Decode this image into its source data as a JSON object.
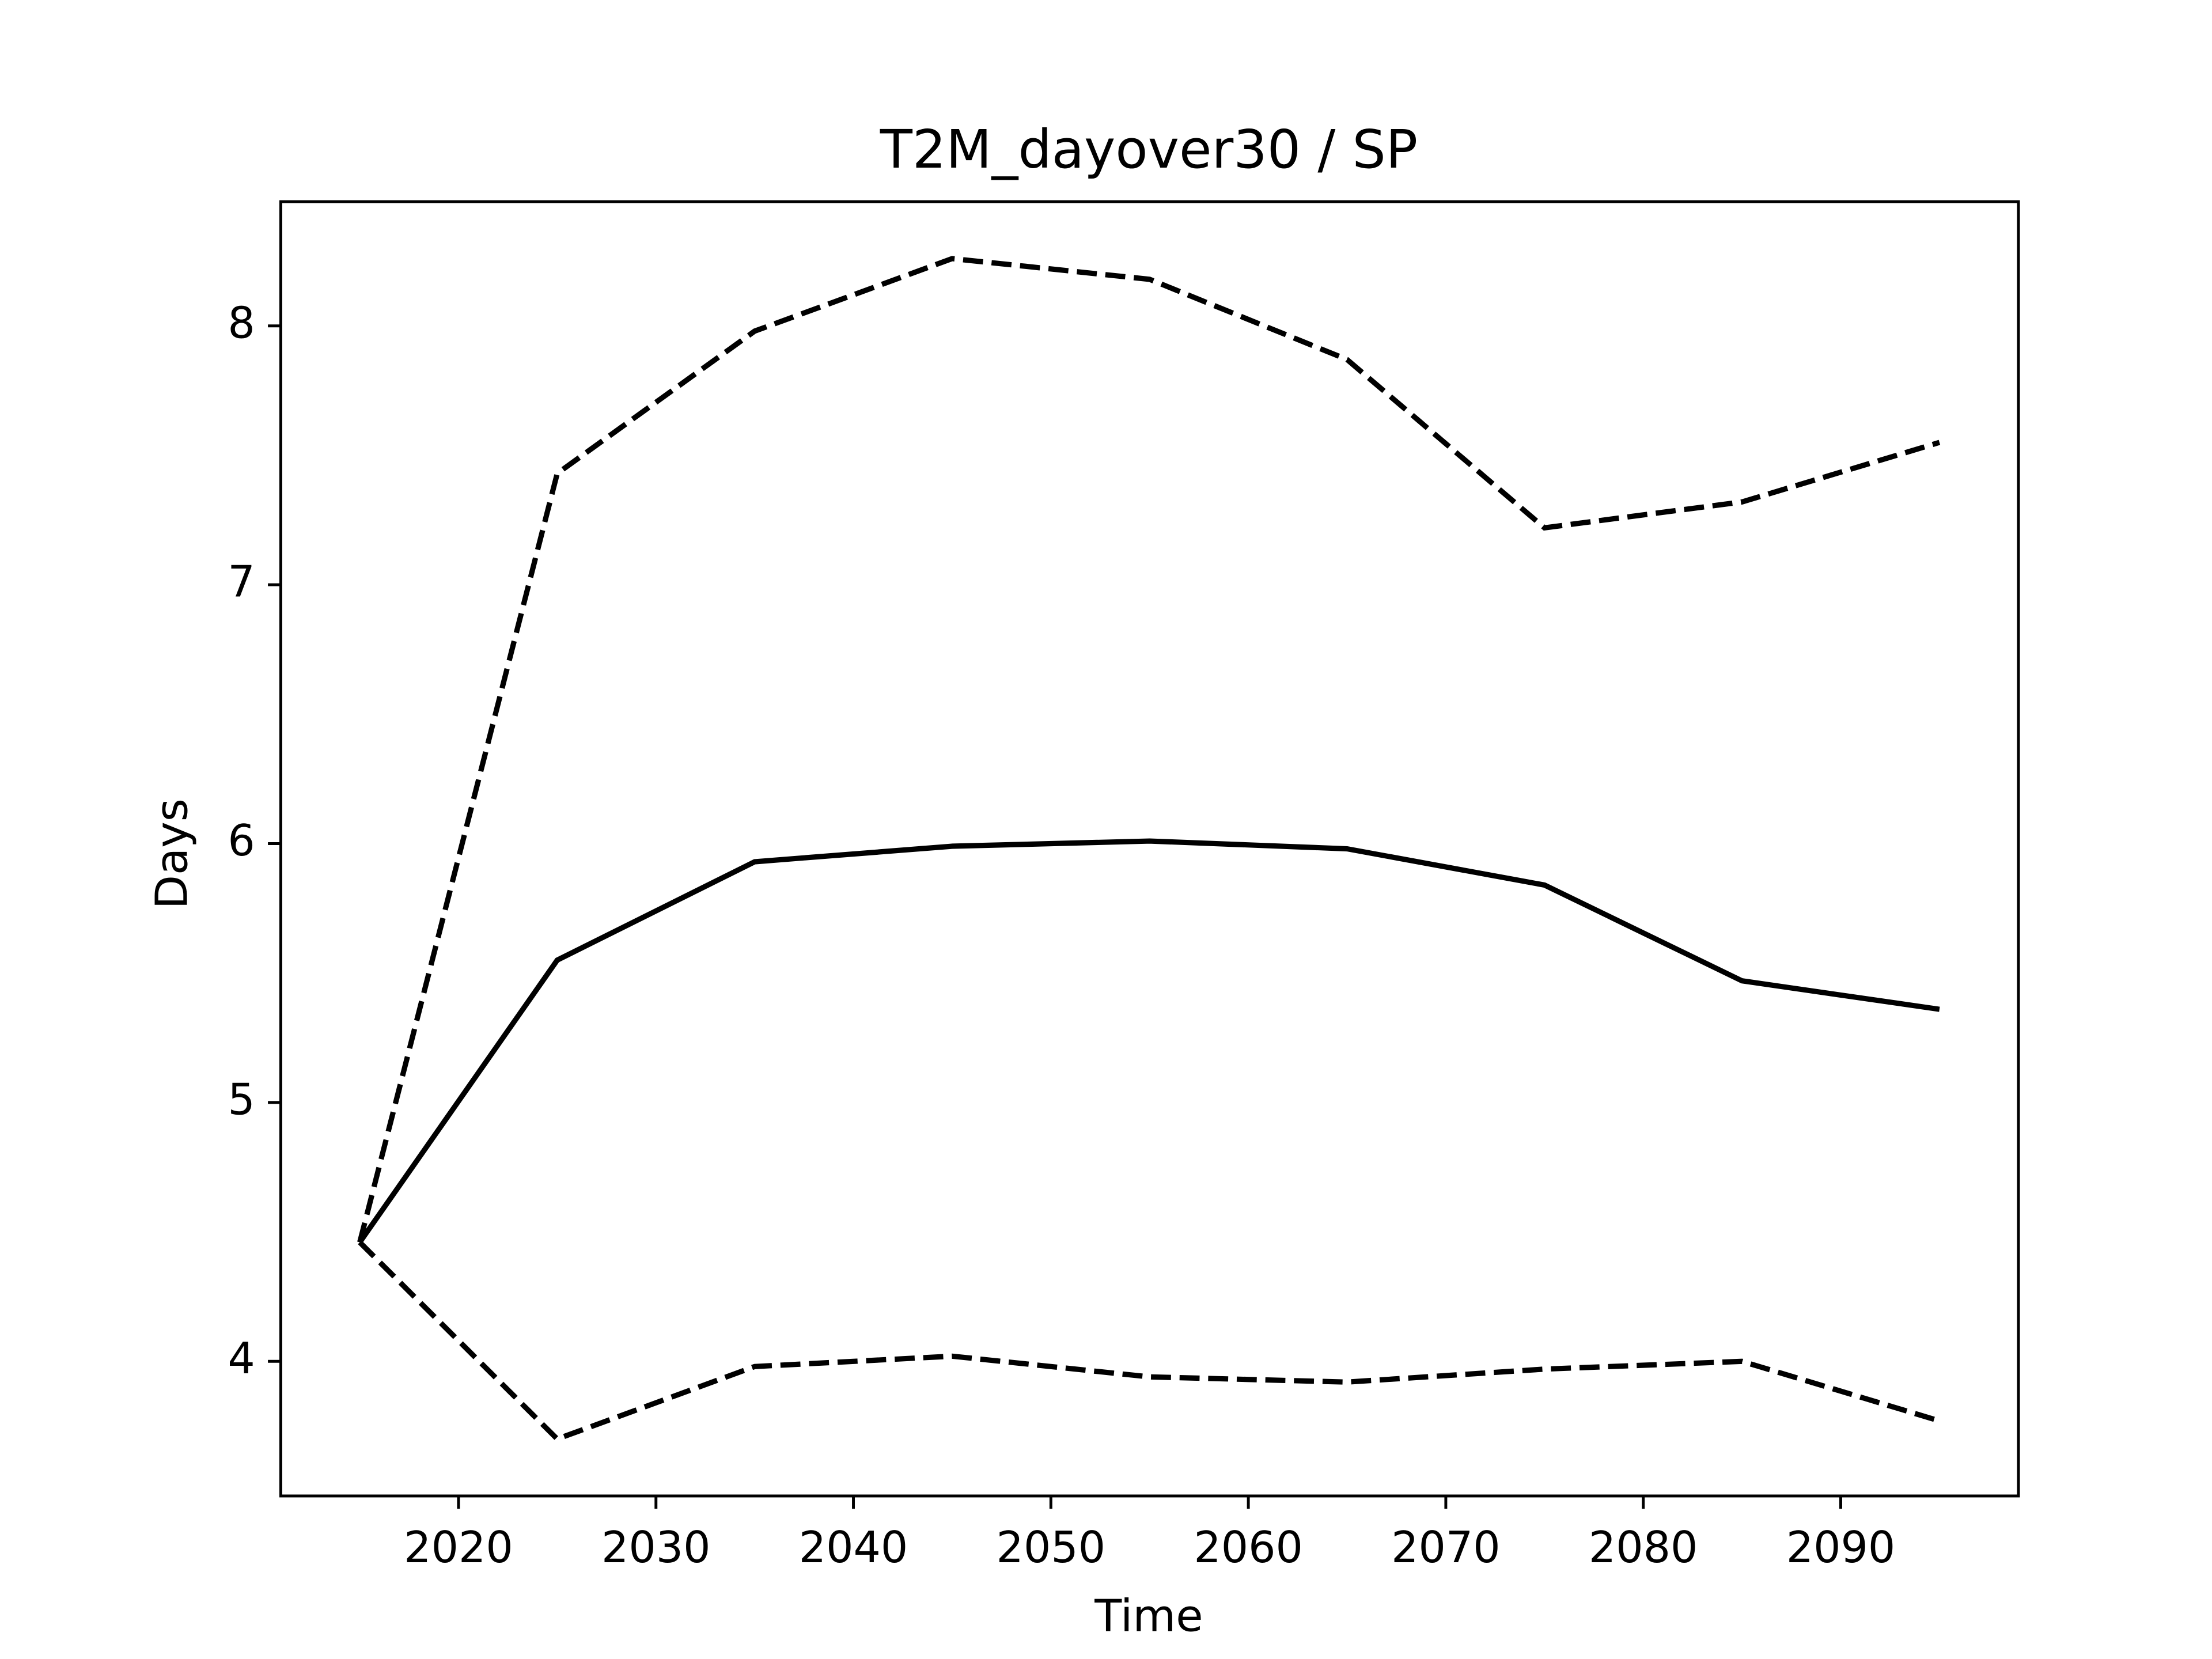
{
  "chart_data": {
    "type": "line",
    "title": "T2M_dayover30 / SP",
    "x_label": "Time",
    "y_label": "Days",
    "x": [
      2015,
      2025,
      2035,
      2045,
      2055,
      2065,
      2075,
      2085,
      2095
    ],
    "series": [
      {
        "color": "#000000",
        "style": "solid",
        "values": [
          4.46,
          5.55,
          5.93,
          5.99,
          6.01,
          5.98,
          5.84,
          5.47,
          5.36
        ]
      },
      {
        "color": "#000000",
        "style": "dashed",
        "values": [
          4.46,
          7.43,
          7.98,
          8.26,
          8.18,
          7.87,
          7.22,
          7.32,
          7.55
        ]
      },
      {
        "color": "#000000",
        "style": "dashed",
        "values": [
          4.46,
          3.7,
          3.98,
          4.02,
          3.94,
          3.92,
          3.97,
          4.0,
          3.77
        ]
      }
    ],
    "xlim": [
      2011,
      2099
    ],
    "xticks": [
      2020,
      2030,
      2040,
      2050,
      2060,
      2070,
      2080,
      2090
    ],
    "ylim": [
      3.48,
      8.48
    ],
    "yticks": [
      4,
      5,
      6,
      7,
      8
    ],
    "grid": false
  }
}
